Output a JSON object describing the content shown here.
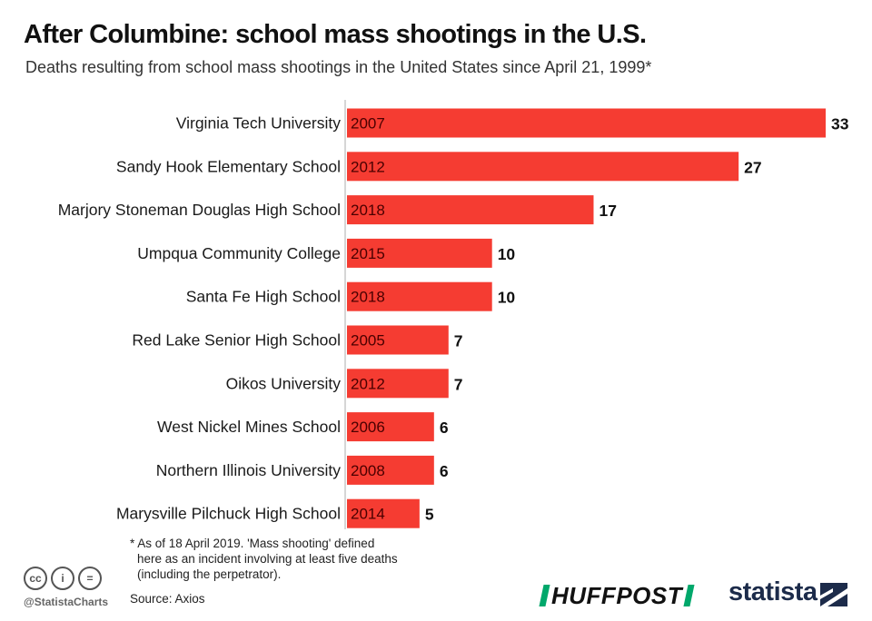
{
  "header": {
    "title": "After Columbine: school mass shootings in the U.S.",
    "subtitle": "Deaths resulting from school mass shootings in the United States since April 21, 1999*"
  },
  "chart_data": {
    "type": "bar",
    "orientation": "horizontal",
    "title": "After Columbine: school mass shootings in the U.S.",
    "subtitle": "Deaths resulting from school mass shootings in the United States since April 21, 1999*",
    "xlabel": "",
    "ylabel": "",
    "xlim": [
      0,
      33
    ],
    "grid": false,
    "bar_color": "#f53c32",
    "categories": [
      "Virginia Tech University",
      "Sandy Hook Elementary School",
      "Marjory Stoneman Douglas High School",
      "Umpqua Community College",
      "Santa Fe High School",
      "Red Lake Senior High School",
      "Oikos University",
      "West Nickel Mines School",
      "Northern Illinois University",
      "Marysville Pilchuck High School"
    ],
    "years": [
      "2007",
      "2012",
      "2018",
      "2015",
      "2018",
      "2005",
      "2012",
      "2006",
      "2008",
      "2014"
    ],
    "values": [
      33,
      27,
      17,
      10,
      10,
      7,
      7,
      6,
      6,
      5
    ]
  },
  "footnote": {
    "lines": [
      "* As of 18 April 2019. 'Mass shooting' defined",
      "here as an incident involving at least five deaths",
      "(including the perpetrator)."
    ]
  },
  "source": "Source: Axios",
  "branding": {
    "handle": "@StatistaCharts",
    "cc_icons": [
      "cc",
      "i",
      "="
    ],
    "partner_logo": "HUFFPOST",
    "statista_logo": "statista"
  }
}
